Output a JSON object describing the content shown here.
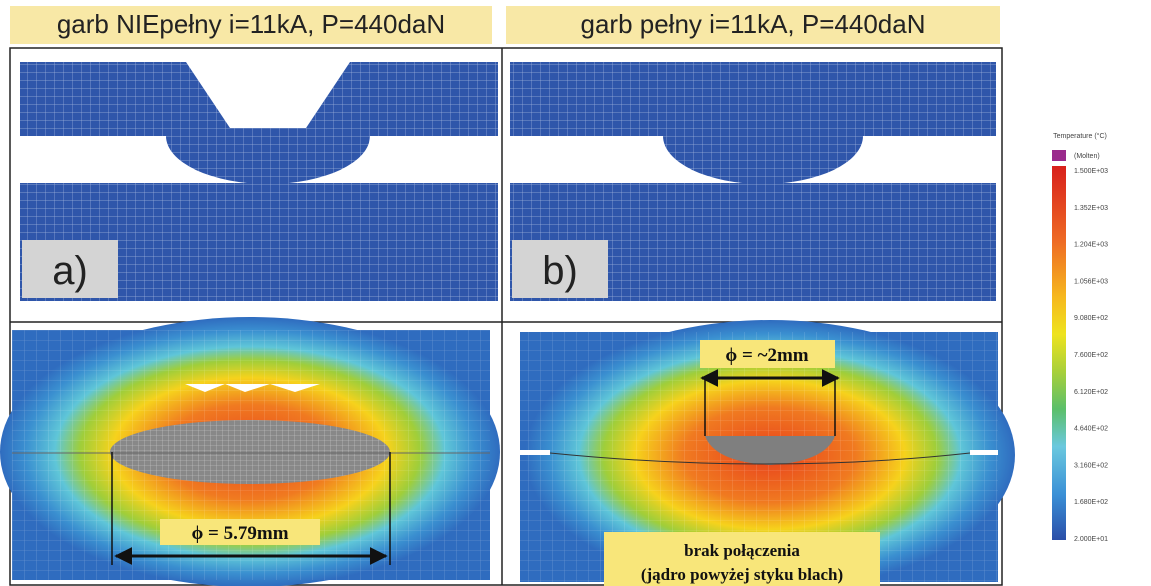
{
  "header": {
    "left": "garb NIEpełny i=11kA, P=440daN",
    "right": "garb pełny i=11kA, P=440daN"
  },
  "panels": {
    "a": "a)",
    "b": "b)"
  },
  "annotations": {
    "left_diameter": "ϕ = 5.79mm",
    "right_diameter": "ϕ = ~2mm",
    "note_line1": "brak połączenia",
    "note_line2": "(jądro powyżej styku blach)"
  },
  "legend": {
    "title": "Temperature (°C)",
    "molten": "(Molten)",
    "labels": [
      "1.500E+03",
      "1.352E+03",
      "1.204E+03",
      "1.056E+03",
      "9.080E+02",
      "7.600E+02",
      "6.120E+02",
      "4.640E+02",
      "3.160E+02",
      "1.680E+02",
      "2.000E+01"
    ]
  }
}
